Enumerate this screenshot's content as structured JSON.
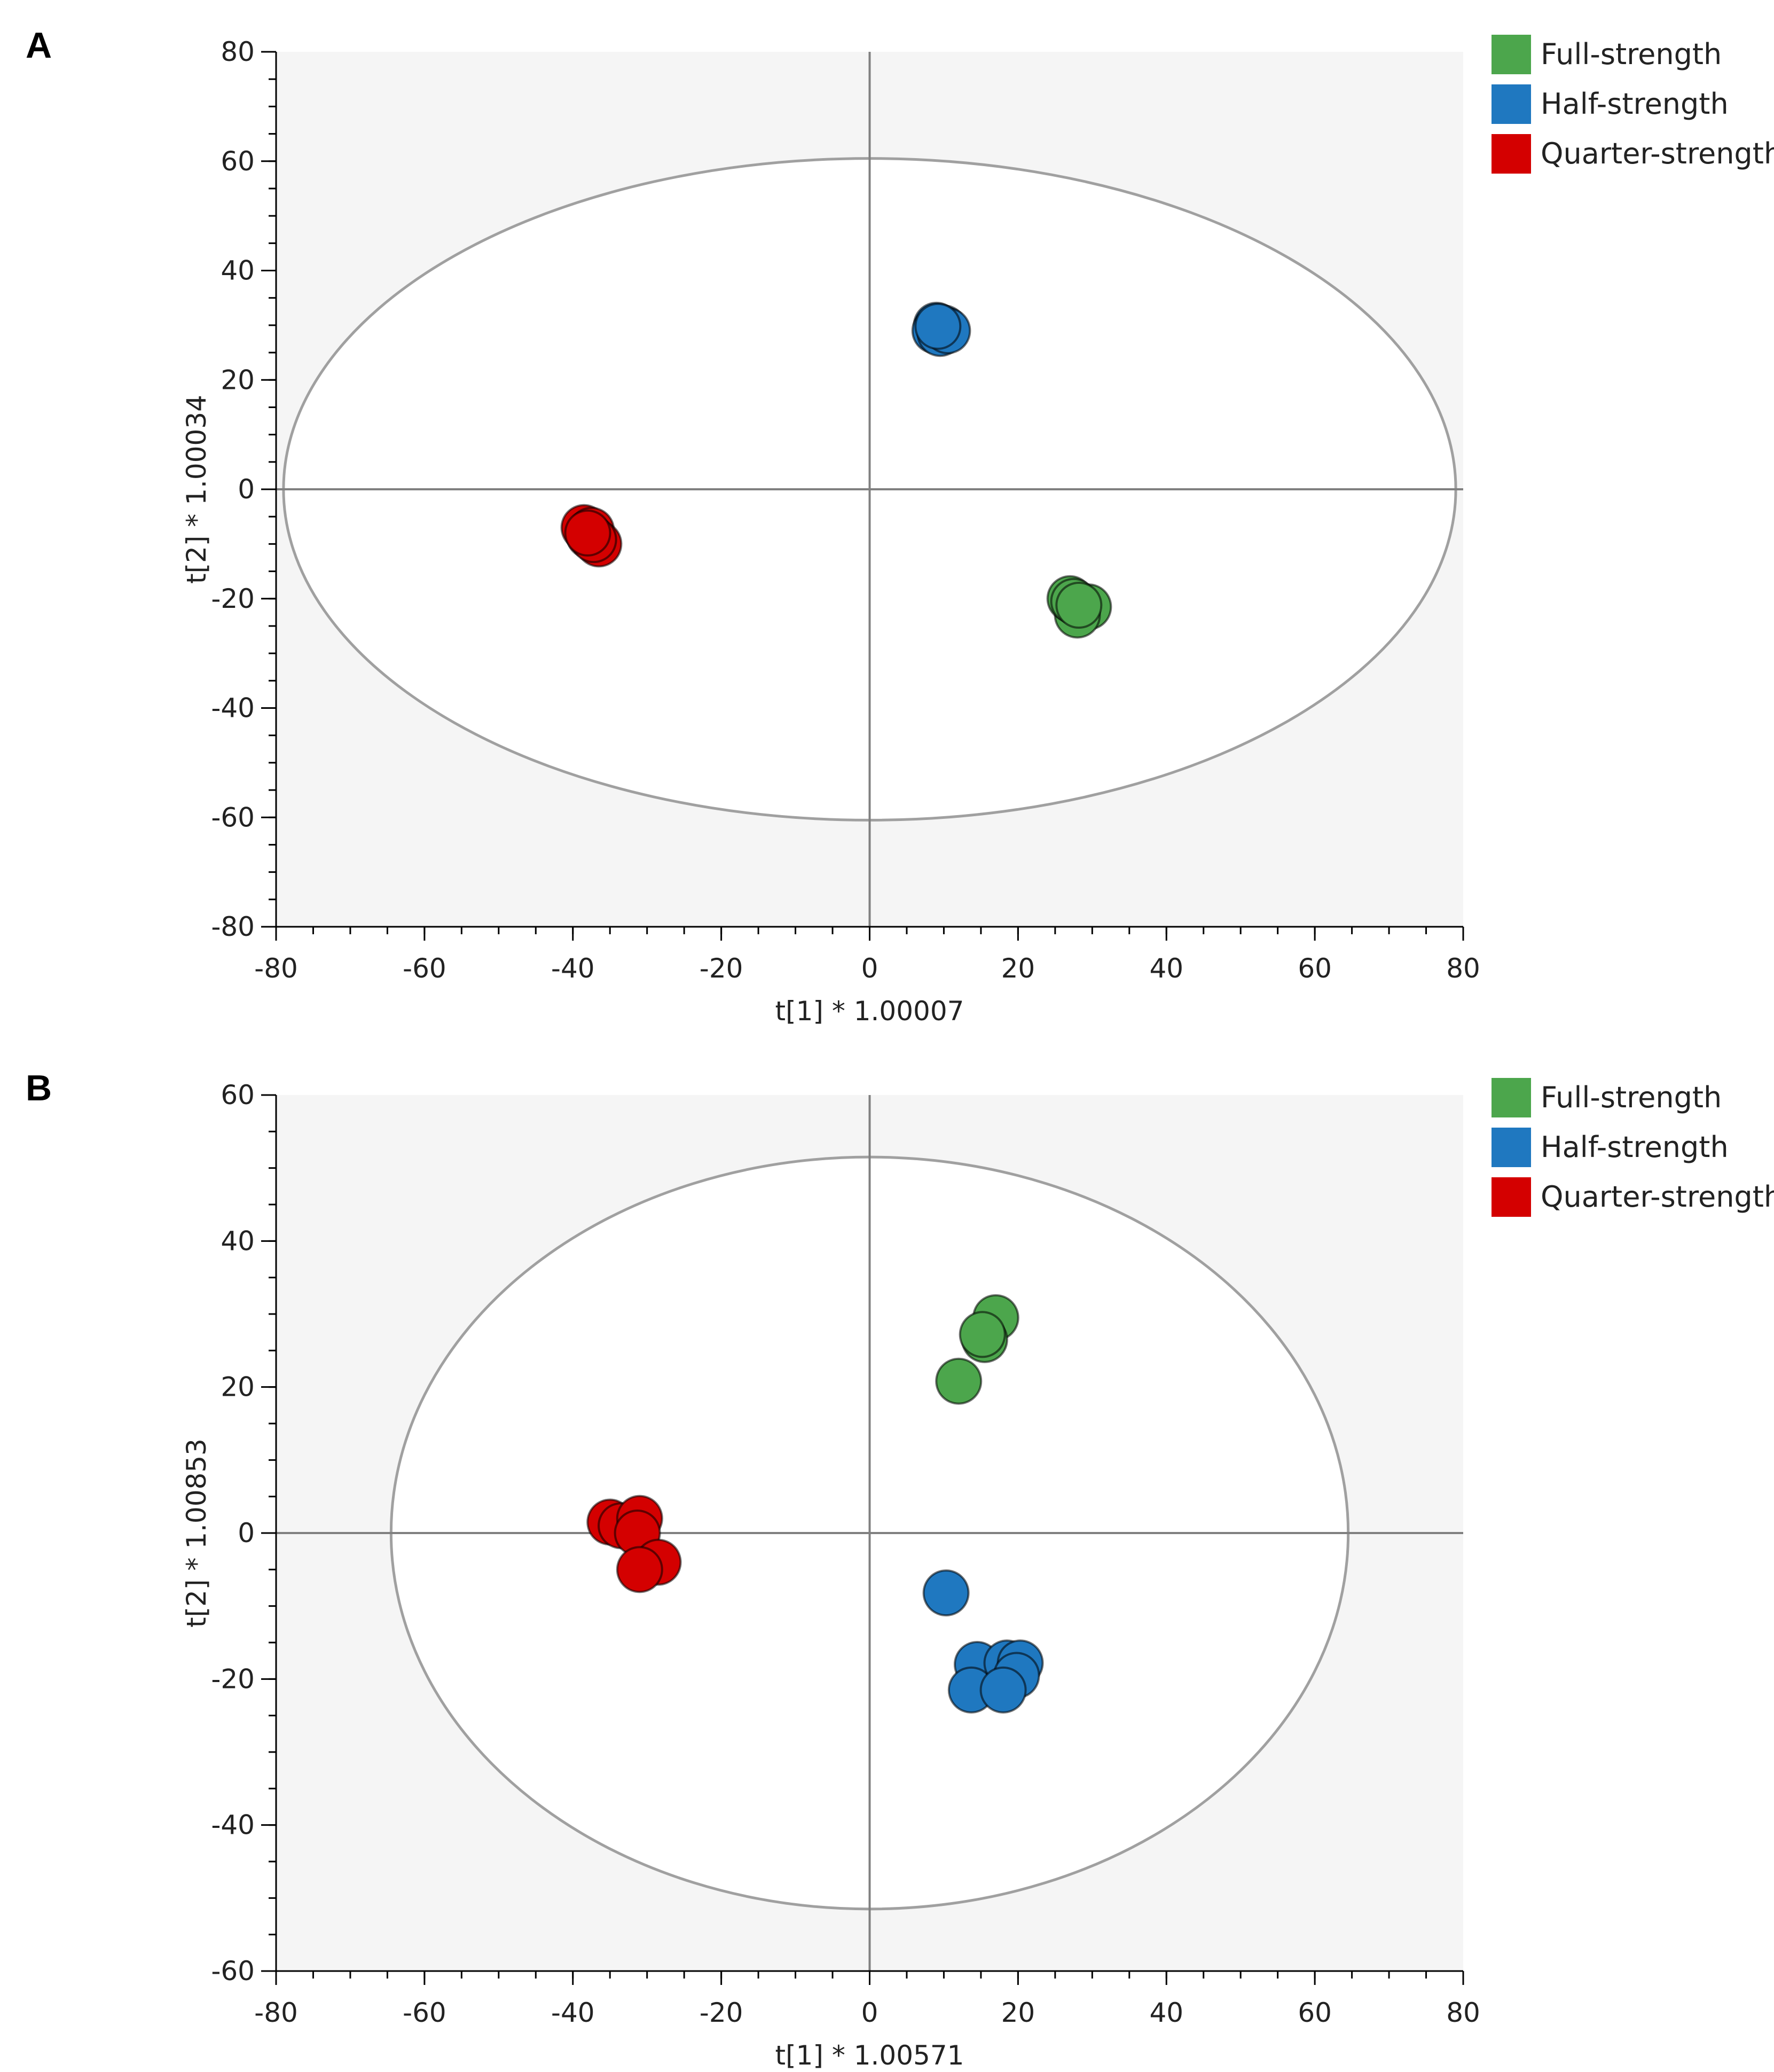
{
  "colors": {
    "full": "#4ca64c",
    "half": "#1f78c0",
    "quarter": "#d40000",
    "plot_bg": "#f5f5f5",
    "ellipse": "#a0a0a0",
    "axis": "#808080"
  },
  "chart_data": [
    {
      "type": "scatter",
      "panel": "A",
      "xlabel": "t[1] * 1.00007",
      "ylabel": "t[2] * 1.00034",
      "xlim": [
        -80,
        80
      ],
      "ylim": [
        -80,
        80
      ],
      "xticks": [
        "-80",
        "-60",
        "-40",
        "-20",
        "0",
        "20",
        "40",
        "60",
        "80"
      ],
      "yticks": [
        "80",
        "60",
        "40",
        "20",
        "0",
        "-20",
        "-40",
        "-60",
        "-80"
      ],
      "x_minor_step": 5,
      "y_minor_step": 5,
      "ellipse": {
        "cx": 0,
        "cy": 0,
        "rx": 79,
        "ry": 60.5
      },
      "legend": [
        "Full-strength",
        "Half-strength",
        "Quarter-strength"
      ],
      "series": [
        {
          "name": "Full-strength",
          "color_key": "full",
          "points": [
            [
              28.5,
              -22
            ],
            [
              29.5,
              -21.5
            ],
            [
              28,
              -23
            ],
            [
              27,
              -20
            ],
            [
              27.5,
              -20.5
            ],
            [
              28.2,
              -21.2
            ]
          ]
        },
        {
          "name": "Half-strength",
          "color_key": "half",
          "points": [
            [
              9,
              30
            ],
            [
              10,
              29.5
            ],
            [
              8.8,
              29
            ],
            [
              9.5,
              28.5
            ],
            [
              10.5,
              29
            ],
            [
              9.2,
              29.8
            ]
          ]
        },
        {
          "name": "Quarter-strength",
          "color_key": "quarter",
          "points": [
            [
              -38.5,
              -7
            ],
            [
              -37.5,
              -7.5
            ],
            [
              -37.8,
              -8.5
            ],
            [
              -36.5,
              -10
            ],
            [
              -37.2,
              -9.2
            ],
            [
              -38,
              -8
            ]
          ]
        }
      ]
    },
    {
      "type": "scatter",
      "panel": "B",
      "xlabel": "t[1] * 1.00571",
      "ylabel": "t[2] * 1.00853",
      "xlim": [
        -80,
        80
      ],
      "ylim": [
        -60,
        60
      ],
      "xticks": [
        "-80",
        "-60",
        "-40",
        "-20",
        "0",
        "20",
        "40",
        "60",
        "80"
      ],
      "yticks": [
        "60",
        "40",
        "20",
        "0",
        "-20",
        "-40",
        "-60"
      ],
      "x_minor_step": 5,
      "y_minor_step": 5,
      "ellipse": {
        "cx": 0,
        "cy": 0,
        "rx": 64.5,
        "ry": 51.5
      },
      "legend": [
        "Full-strength",
        "Half-strength",
        "Quarter-strength"
      ],
      "series": [
        {
          "name": "Full-strength",
          "color_key": "full",
          "points": [
            [
              17,
              29.5
            ],
            [
              15.5,
              26.5
            ],
            [
              15.2,
              27.2
            ],
            [
              12,
              20.8
            ]
          ]
        },
        {
          "name": "Half-strength",
          "color_key": "half",
          "points": [
            [
              10.3,
              -8.2
            ],
            [
              14.5,
              -18
            ],
            [
              13.7,
              -21.5
            ],
            [
              18.5,
              -17.8
            ],
            [
              20.3,
              -17.8
            ],
            [
              19.8,
              -19.5
            ],
            [
              18,
              -21.5
            ]
          ]
        },
        {
          "name": "Quarter-strength",
          "color_key": "quarter",
          "points": [
            [
              -35,
              1.5
            ],
            [
              -33.5,
              1
            ],
            [
              -31,
              2
            ],
            [
              -31.3,
              0
            ],
            [
              -28.5,
              -4
            ],
            [
              -31,
              -5
            ]
          ]
        }
      ]
    }
  ]
}
